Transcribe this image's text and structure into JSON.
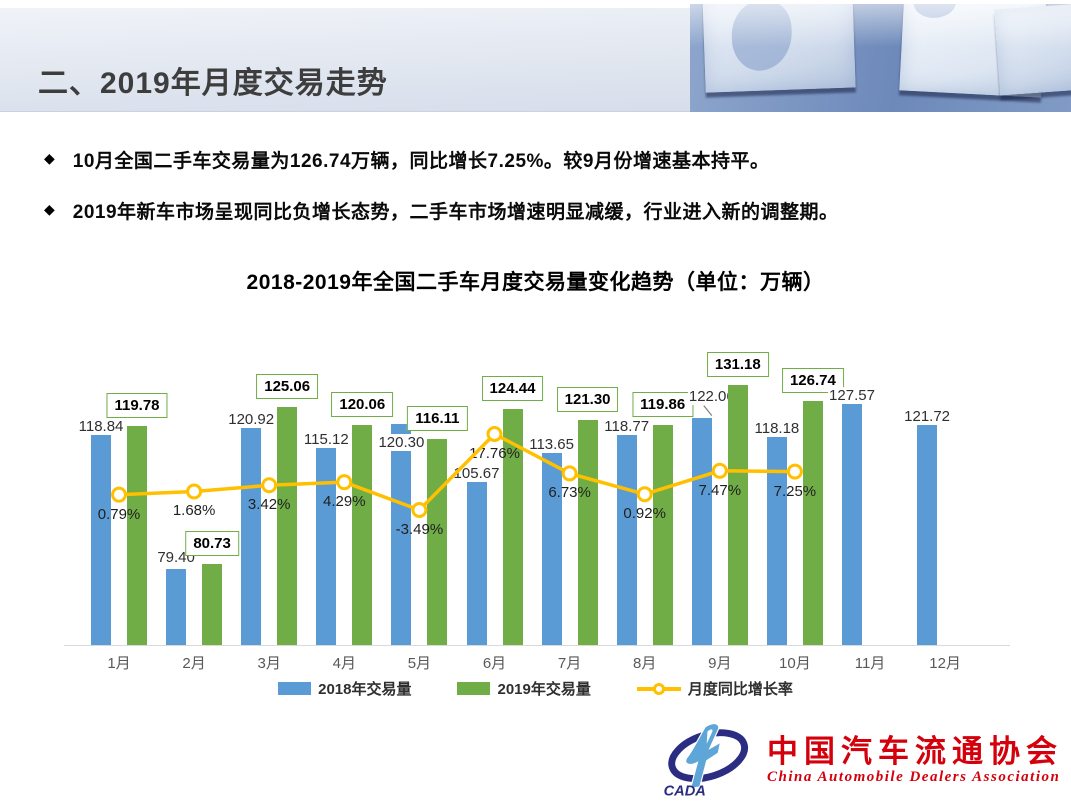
{
  "header": {
    "title": "二、2019年月度交易走势"
  },
  "bullet_marker": "◆",
  "bullets": [
    "10月全国二手车交易量为126.74万辆，同比增长7.25%。较9月份增速基本持平。",
    "2019年新车市场呈现同比负增长态势，二手车市场增速明显减缓，行业进入新的调整期。"
  ],
  "chart_data": {
    "type": "bar",
    "title": "2018-2019年全国二手车月度交易量变化趋势（单位：万辆）",
    "categories": [
      "1月",
      "2月",
      "3月",
      "4月",
      "5月",
      "6月",
      "7月",
      "8月",
      "9月",
      "10月",
      "11月",
      "12月"
    ],
    "series": [
      {
        "name": "2018年交易量",
        "color": "#5B9BD5",
        "values": [
          118.84,
          79.4,
          120.92,
          115.12,
          120.3,
          105.67,
          113.65,
          118.77,
          122.06,
          118.18,
          127.57,
          121.72
        ]
      },
      {
        "name": "2019年交易量",
        "color": "#70AD47",
        "values": [
          119.78,
          80.73,
          125.06,
          120.06,
          116.11,
          124.44,
          121.3,
          119.86,
          131.18,
          126.74,
          null,
          null
        ]
      }
    ],
    "line_series": {
      "name": "月度同比增长率",
      "color": "#FFC000",
      "values_pct": [
        0.79,
        1.68,
        3.42,
        4.29,
        -3.49,
        17.76,
        6.73,
        0.92,
        7.47,
        7.25,
        null,
        null
      ]
    },
    "label_style_2019": "boxed-green-border",
    "grid": false,
    "value_axis_visible": false,
    "legend_position": "bottom",
    "label_hints": {
      "above": [
        2
      ],
      "on_bar": [
        5
      ],
      "leader": [
        9
      ]
    }
  },
  "logo": {
    "abbr": "CADA",
    "cn": "中国汽车流通协会",
    "en": "China Automobile Dealers Association"
  }
}
